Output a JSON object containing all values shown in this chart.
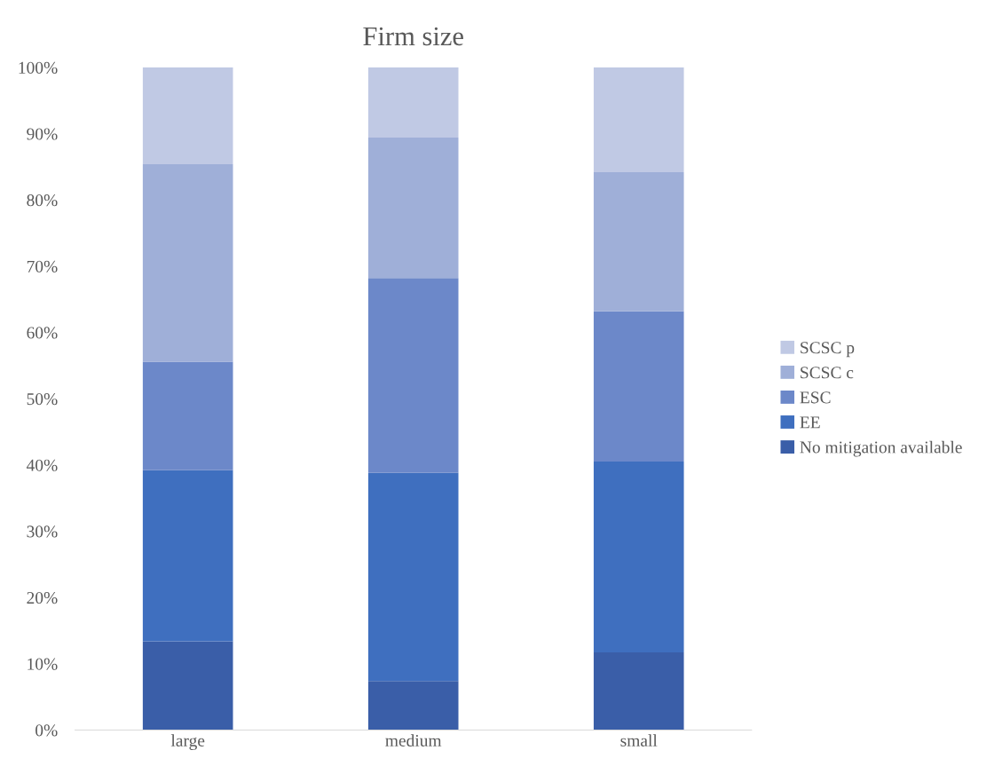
{
  "chart_data": {
    "type": "bar",
    "title": "Firm size",
    "stacked": true,
    "categories": [
      "large",
      "medium",
      "small"
    ],
    "series": [
      {
        "name": "No mitigation available",
        "color": "#3a5ea8",
        "values": [
          13.4,
          7.4,
          11.7
        ]
      },
      {
        "name": "EE",
        "color": "#3f6fbf",
        "values": [
          25.8,
          31.4,
          28.8
        ]
      },
      {
        "name": "ESC",
        "color": "#6c88c9",
        "values": [
          16.4,
          29.4,
          22.7
        ]
      },
      {
        "name": "SCSC c",
        "color": "#9fafd8",
        "values": [
          29.8,
          21.2,
          21.0
        ]
      },
      {
        "name": "SCSC p",
        "color": "#c0c9e4",
        "values": [
          14.6,
          10.6,
          15.8
        ]
      }
    ],
    "ylim": [
      0,
      100
    ],
    "yticks": [
      {
        "value": 0,
        "label": "0%"
      },
      {
        "value": 10,
        "label": "10%"
      },
      {
        "value": 20,
        "label": "20%"
      },
      {
        "value": 30,
        "label": "30%"
      },
      {
        "value": 40,
        "label": "40%"
      },
      {
        "value": 50,
        "label": "50%"
      },
      {
        "value": 60,
        "label": "60%"
      },
      {
        "value": 70,
        "label": "70%"
      },
      {
        "value": 80,
        "label": "80%"
      },
      {
        "value": 90,
        "label": "90%"
      },
      {
        "value": 100,
        "label": "100%"
      }
    ],
    "legend": "right"
  }
}
